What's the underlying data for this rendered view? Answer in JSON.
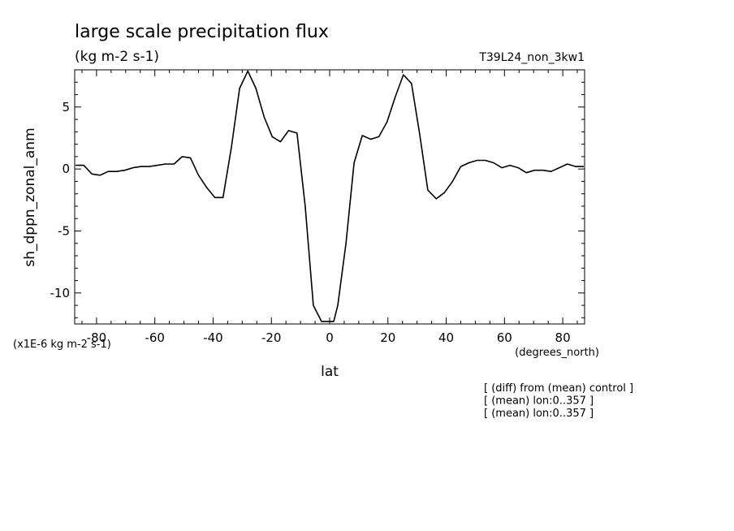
{
  "chart_data": {
    "type": "line",
    "title": "large scale precipitation flux",
    "subtitle": "(kg m-2 s-1)",
    "run_label": "T39L24_non_3kw1",
    "xlabel": "lat",
    "x_units": "(degrees_north)",
    "ylabel": "sh_dppn_zonal_anm",
    "y_scale_note": "(x1E-6 kg m-2 s-1)",
    "xlim": [
      -87.5,
      87.5
    ],
    "ylim": [
      -12.5,
      8
    ],
    "x_ticks": [
      -80,
      -60,
      -40,
      -20,
      0,
      20,
      40,
      60,
      80
    ],
    "x_tick_labels": [
      "-80",
      "-60",
      "-40",
      "-20",
      "0",
      "20",
      "40",
      "60",
      "80"
    ],
    "y_ticks": [
      -10,
      -5,
      0,
      5
    ],
    "y_tick_labels": [
      "-10",
      "-5",
      "0",
      "5"
    ],
    "grid": false,
    "x": [
      -87.2,
      -84.4,
      -81.6,
      -78.8,
      -76.0,
      -73.2,
      -70.3,
      -67.5,
      -64.7,
      -61.9,
      -59.1,
      -56.3,
      -53.4,
      -50.6,
      -47.8,
      -45.0,
      -42.2,
      -39.4,
      -36.6,
      -33.7,
      -30.9,
      -28.1,
      -25.3,
      -22.5,
      -19.7,
      -16.9,
      -14.1,
      -11.2,
      -8.4,
      -5.6,
      -2.8,
      0.0,
      1.4,
      2.8,
      5.6,
      8.4,
      11.2,
      14.1,
      16.9,
      19.7,
      22.5,
      25.3,
      28.1,
      30.9,
      33.7,
      36.6,
      39.4,
      42.2,
      45.0,
      47.8,
      50.6,
      53.4,
      56.3,
      59.1,
      61.9,
      64.7,
      67.5,
      70.3,
      73.2,
      76.0,
      78.8,
      81.6,
      84.4,
      87.2
    ],
    "values": [
      0.3,
      0.3,
      -0.4,
      -0.5,
      -0.2,
      -0.2,
      -0.1,
      0.1,
      0.2,
      0.2,
      0.3,
      0.4,
      0.4,
      1.0,
      0.9,
      -0.5,
      -1.5,
      -2.3,
      -2.3,
      1.8,
      6.5,
      7.9,
      6.5,
      4.2,
      2.6,
      2.2,
      3.1,
      2.9,
      -3.0,
      -11.0,
      -12.3,
      -12.3,
      -12.3,
      -11.0,
      -6.0,
      0.5,
      2.7,
      2.4,
      2.6,
      3.8,
      5.8,
      7.6,
      6.9,
      2.8,
      -1.7,
      -2.4,
      -1.9,
      -1.0,
      0.2,
      0.5,
      0.7,
      0.7,
      0.5,
      0.1,
      0.3,
      0.1,
      -0.3,
      -0.1,
      -0.1,
      -0.2,
      0.1,
      0.4,
      0.2,
      0.2
    ],
    "annotations": [
      "[ (diff) from (mean) control ]",
      "[ (mean) lon:0..357 ]",
      "[ (mean) lon:0..357 ]"
    ]
  }
}
